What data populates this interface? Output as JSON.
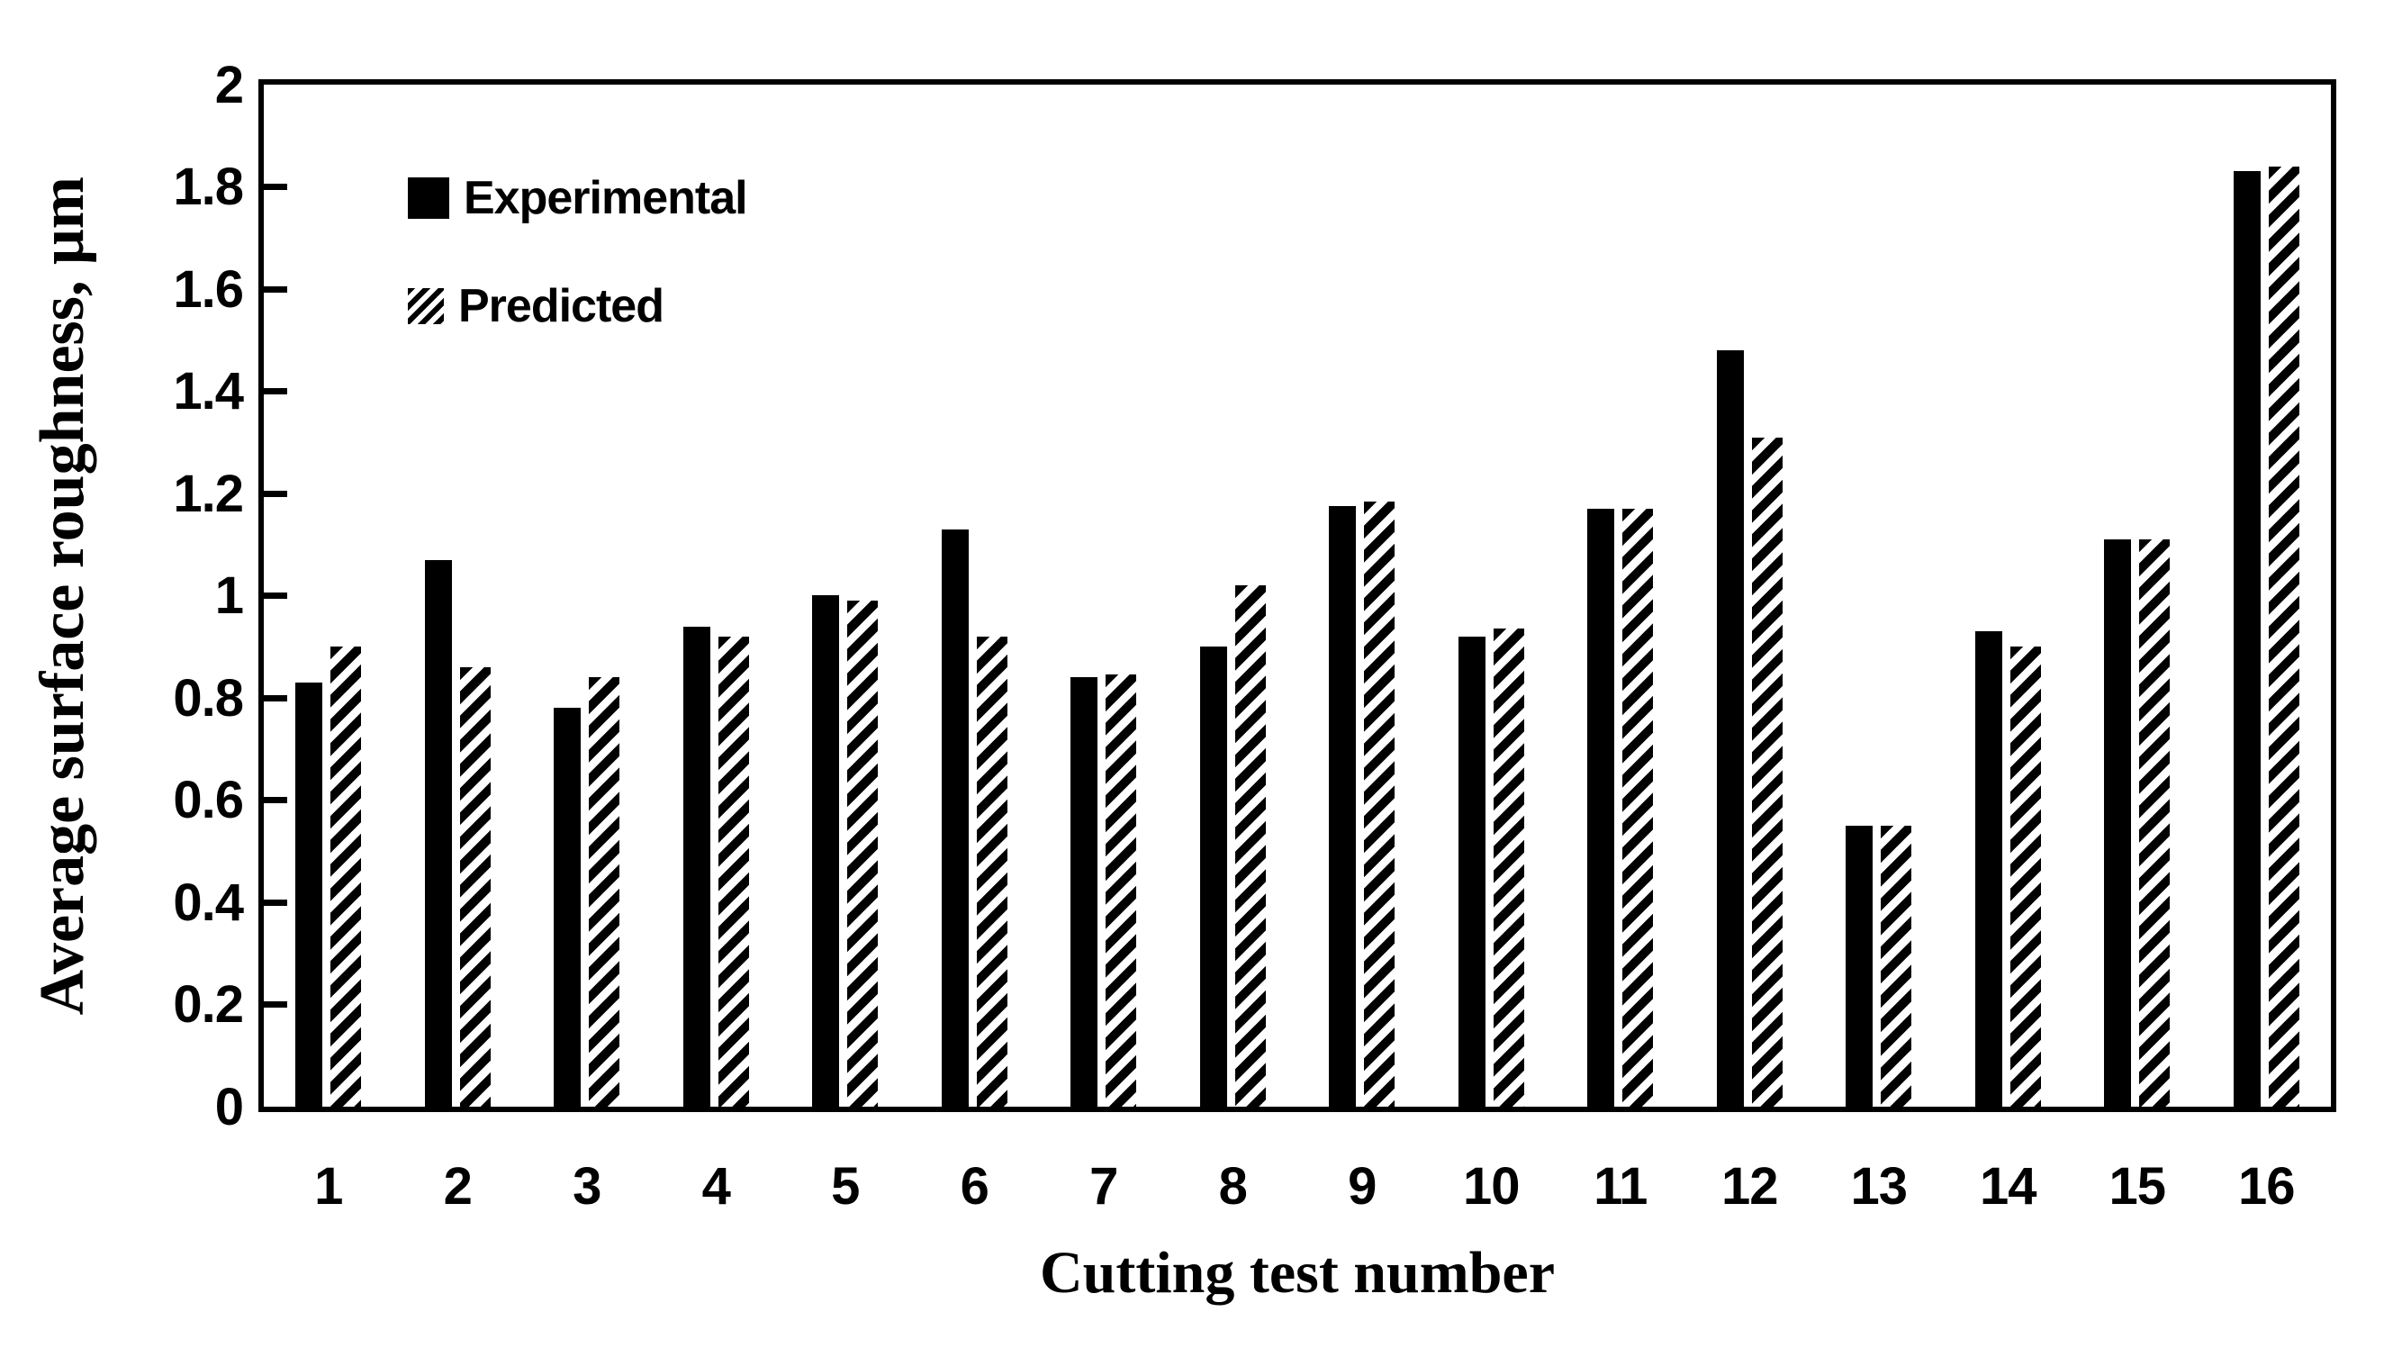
{
  "figure": {
    "background_color": "#ffffff",
    "ink_color": "#000000"
  },
  "chart_data": {
    "type": "bar",
    "title": "",
    "xlabel": "Cutting test number",
    "ylabel": "Average surface roughness, μm",
    "categories": [
      "1",
      "2",
      "3",
      "4",
      "5",
      "6",
      "7",
      "8",
      "9",
      "10",
      "11",
      "12",
      "13",
      "14",
      "15",
      "16"
    ],
    "series": [
      {
        "name": "Experimental",
        "style": "solid-black",
        "values": [
          0.83,
          1.07,
          0.78,
          0.94,
          1.0,
          1.13,
          0.84,
          0.9,
          1.175,
          0.92,
          1.17,
          1.48,
          0.55,
          0.93,
          1.11,
          1.83
        ]
      },
      {
        "name": "Predicted",
        "style": "diagonal-hatch",
        "values": [
          0.9,
          0.86,
          0.84,
          0.92,
          0.99,
          0.92,
          0.845,
          1.02,
          1.185,
          0.935,
          1.17,
          1.31,
          0.55,
          0.9,
          1.11,
          1.84
        ]
      }
    ],
    "ylim": [
      0,
      2
    ],
    "yticks": {
      "values": [
        0,
        0.2,
        0.4,
        0.6,
        0.8,
        1,
        1.2,
        1.4,
        1.6,
        1.8,
        2
      ],
      "labels": [
        "0",
        "0.2",
        "0.4",
        "0.6",
        "0.8",
        "1",
        "1.2",
        "1.4",
        "1.6",
        "1.8",
        "2"
      ]
    },
    "grid": false,
    "legend_position": "top-left-inside"
  }
}
